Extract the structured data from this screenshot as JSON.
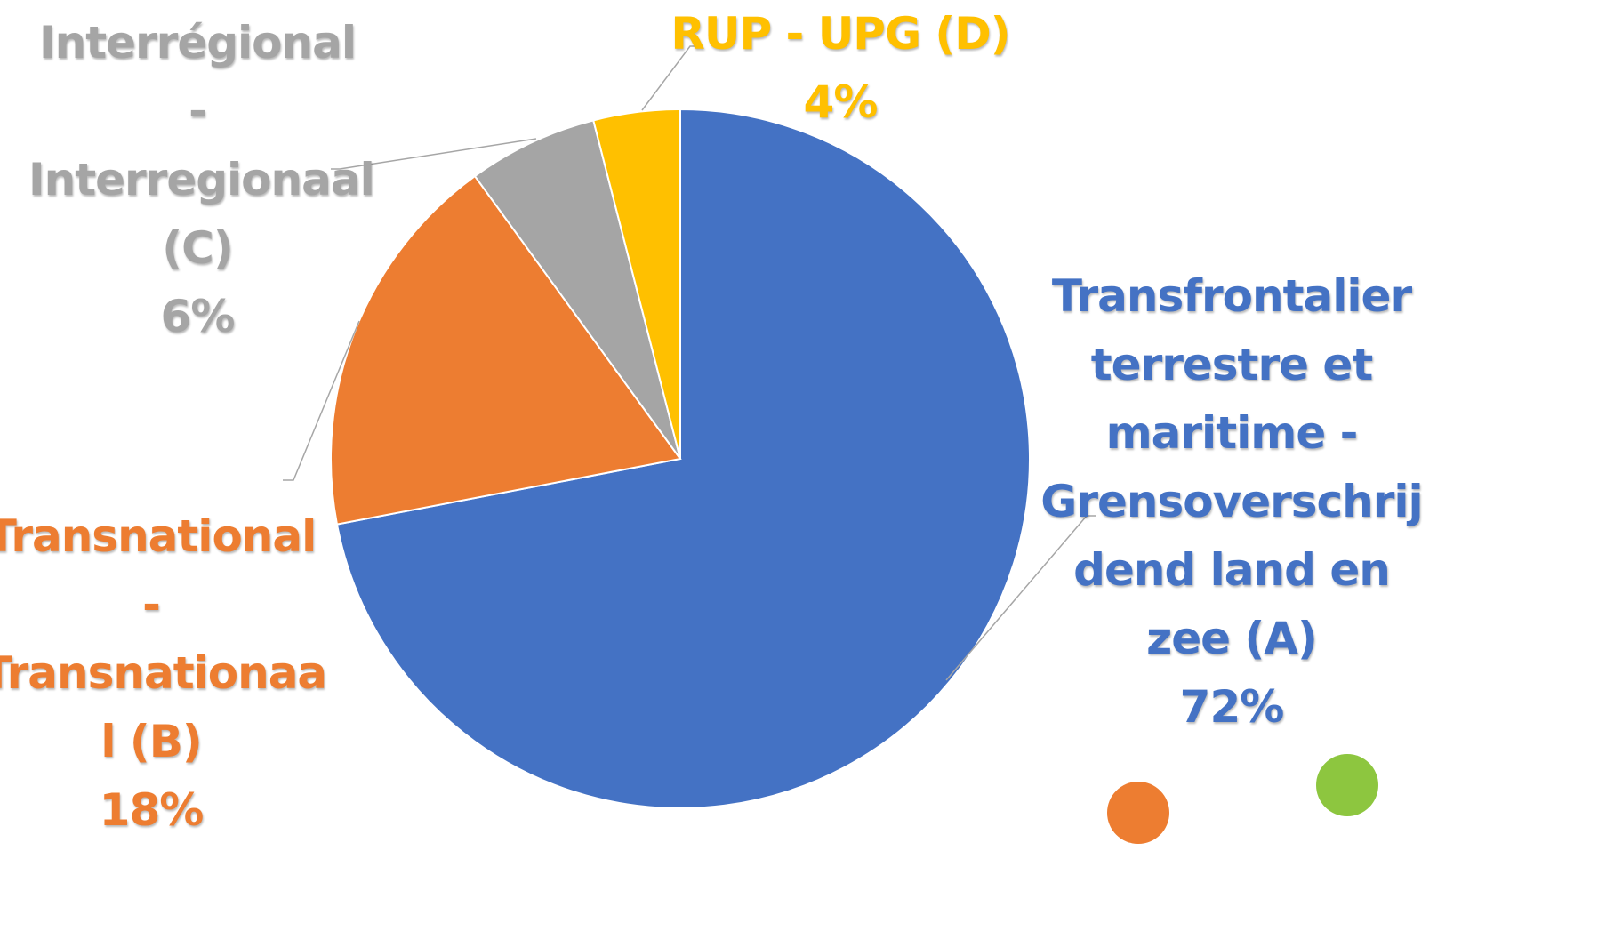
{
  "chart_data": {
    "type": "pie",
    "slices": [
      {
        "key": "A",
        "label_lines": [
          "Transfrontalier",
          "terrestre et",
          "maritime -",
          "Grensoverschrij",
          "dend land en",
          "zee (A)"
        ],
        "percent_text": "72%",
        "value": 72,
        "color": "#4472C4"
      },
      {
        "key": "B",
        "label_lines": [
          "Transnational",
          "-",
          "Transnationaa",
          "l (B)"
        ],
        "percent_text": "18%",
        "value": 18,
        "color": "#ED7D31"
      },
      {
        "key": "C",
        "label_lines": [
          "Interrégional",
          "-",
          "Interregionaal",
          "(C)"
        ],
        "percent_text": "6%",
        "value": 6,
        "color": "#A5A5A5"
      },
      {
        "key": "D",
        "label_lines": [
          "RUP - UPG (D)"
        ],
        "percent_text": "4%",
        "value": 4,
        "color": "#FFC000"
      }
    ],
    "start": "12 o'clock",
    "direction": "clockwise"
  },
  "decorations": {
    "orange_circle_color": "#ED7D31",
    "green_circle_color": "#8DC63F"
  }
}
